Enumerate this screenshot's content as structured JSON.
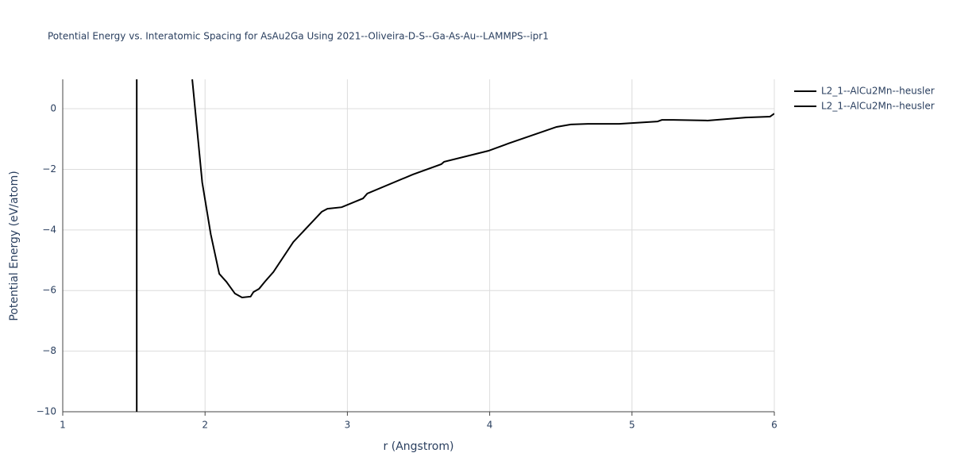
{
  "chart_data": {
    "type": "line",
    "title": "Potential Energy vs. Interatomic Spacing for AsAu2Ga Using 2021--Oliveira-D-S--Ga-As-Au--LAMMPS--ipr1",
    "x_label": "r (Angstrom)",
    "y_label": "Potential Energy (eV/atom)",
    "xlim": [
      1,
      6
    ],
    "ylim": [
      -10,
      0.97
    ],
    "xticks": [
      1,
      2,
      3,
      4,
      5,
      6
    ],
    "yticks": [
      {
        "value": -10,
        "label": "−10"
      },
      {
        "value": -8,
        "label": "−8"
      },
      {
        "value": -6,
        "label": "−6"
      },
      {
        "value": -4,
        "label": "−4"
      },
      {
        "value": -2,
        "label": "−2"
      },
      0
    ],
    "grid": true,
    "legend": "top-right",
    "series": [
      {
        "name": "L2_1--AlCu2Mn--heusler",
        "color": "#000000",
        "x": [
          1.52,
          1.52
        ],
        "values": [
          0.97,
          -10
        ]
      },
      {
        "name": "L2_1--AlCu2Mn--heusler",
        "color": "#000000",
        "x": [
          1.91,
          1.98,
          2.04,
          2.1,
          2.15,
          2.21,
          2.26,
          2.32,
          2.34,
          2.38,
          2.42,
          2.48,
          2.62,
          2.74,
          2.82,
          2.86,
          2.96,
          3.11,
          3.14,
          3.46,
          3.66,
          3.68,
          3.99,
          4.13,
          4.47,
          4.57,
          4.69,
          4.91,
          5.18,
          5.21,
          5.29,
          5.53,
          5.8,
          5.97,
          6.0
        ],
        "values": [
          0.97,
          -2.43,
          -4.14,
          -5.45,
          -5.71,
          -6.1,
          -6.23,
          -6.2,
          -6.05,
          -5.94,
          -5.71,
          -5.39,
          -4.4,
          -3.8,
          -3.4,
          -3.3,
          -3.25,
          -2.96,
          -2.8,
          -2.17,
          -1.83,
          -1.75,
          -1.39,
          -1.15,
          -0.6,
          -0.52,
          -0.5,
          -0.5,
          -0.42,
          -0.37,
          -0.37,
          -0.39,
          -0.29,
          -0.26,
          -0.16
        ]
      }
    ]
  }
}
